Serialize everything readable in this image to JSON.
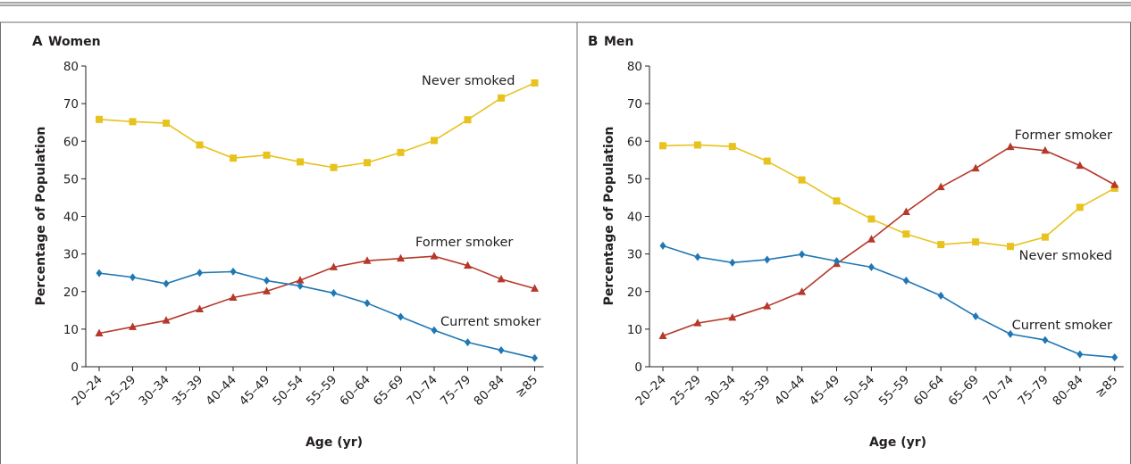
{
  "chart_data": [
    {
      "type": "line",
      "panel_letter": "A",
      "title": "Women",
      "xlabel": "Age (yr)",
      "ylabel": "Percentage of Population",
      "ylim": [
        0,
        80
      ],
      "yticks": [
        "0",
        "10",
        "20",
        "30",
        "40",
        "50",
        "60",
        "70",
        "80"
      ],
      "categories": [
        "20–24",
        "25–29",
        "30–34",
        "35–39",
        "40–44",
        "45–49",
        "50–54",
        "55–59",
        "60–64",
        "65–69",
        "70–74",
        "75–79",
        "80–84",
        "≥85"
      ],
      "grid": false,
      "legend": "inline labels",
      "series": [
        {
          "name": "Never smoked",
          "color": "#e8c21d",
          "marker": "square",
          "values": [
            65.8,
            65.2,
            64.8,
            59.0,
            55.5,
            56.3,
            54.5,
            53.0,
            54.3,
            57.0,
            60.2,
            65.7,
            71.5,
            75.5
          ]
        },
        {
          "name": "Former smoker",
          "color": "#b5382a",
          "marker": "triangle",
          "values": [
            8.9,
            10.6,
            12.3,
            15.3,
            18.4,
            20.1,
            23.0,
            26.5,
            28.2,
            28.8,
            29.4,
            26.9,
            23.3,
            20.8
          ]
        },
        {
          "name": "Current smoker",
          "color": "#1f77b4",
          "marker": "diamond",
          "values": [
            24.9,
            23.8,
            22.1,
            25.0,
            25.3,
            22.9,
            21.5,
            19.6,
            16.9,
            13.3,
            9.7,
            6.5,
            4.4,
            2.3
          ]
        }
      ]
    },
    {
      "type": "line",
      "panel_letter": "B",
      "title": "Men",
      "xlabel": "Age (yr)",
      "ylabel": "Percentage of Population",
      "ylim": [
        0,
        80
      ],
      "yticks": [
        "0",
        "10",
        "20",
        "30",
        "40",
        "50",
        "60",
        "70",
        "80"
      ],
      "categories": [
        "20–24",
        "25–29",
        "30–34",
        "35–39",
        "40–44",
        "45–49",
        "50–54",
        "55–59",
        "60–64",
        "65–69",
        "70–74",
        "75–79",
        "80–84",
        "≥85"
      ],
      "grid": false,
      "legend": "inline labels",
      "series": [
        {
          "name": "Never smoked",
          "color": "#e8c21d",
          "marker": "square",
          "values": [
            58.8,
            59.0,
            58.6,
            54.7,
            49.7,
            44.1,
            39.3,
            35.3,
            32.5,
            33.2,
            32.0,
            34.5,
            42.4,
            47.5
          ]
        },
        {
          "name": "Former smoker",
          "color": "#b5382a",
          "marker": "triangle",
          "values": [
            8.2,
            11.6,
            13.1,
            16.1,
            19.9,
            27.4,
            33.9,
            41.2,
            47.8,
            52.8,
            58.5,
            57.5,
            53.5,
            48.4
          ]
        },
        {
          "name": "Current smoker",
          "color": "#1f77b4",
          "marker": "diamond",
          "values": [
            32.2,
            29.2,
            27.7,
            28.5,
            29.9,
            28.1,
            26.5,
            22.9,
            18.9,
            13.4,
            8.7,
            7.1,
            3.3,
            2.5
          ]
        }
      ]
    }
  ]
}
